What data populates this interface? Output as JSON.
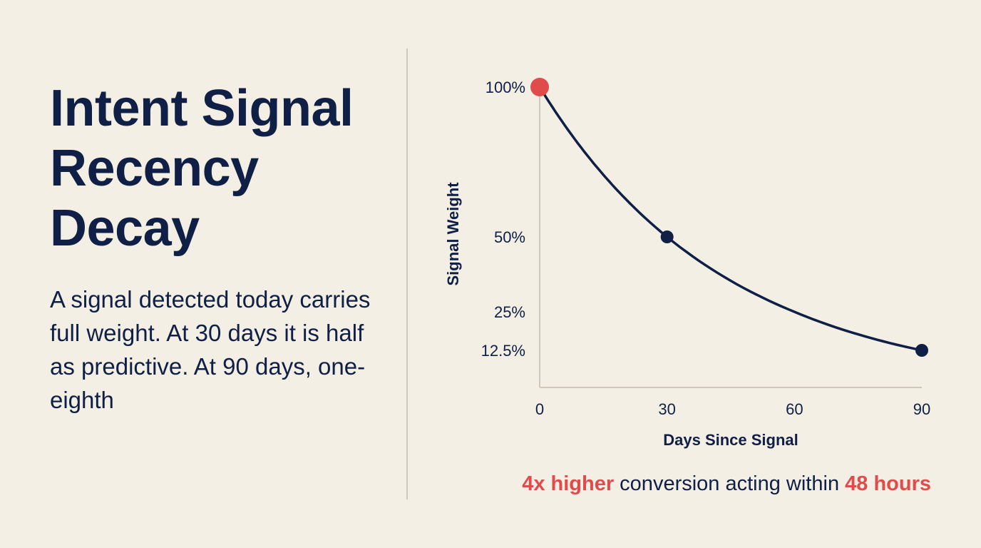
{
  "headline": {
    "line1": "Intent Signal",
    "line2": "Recency",
    "line3": "Decay"
  },
  "description": "A signal detected today carries full weight. At 30 days it is half as predictive. At 90 days, one-eighth",
  "callout": {
    "highlight1": "4x higher",
    "middle": " conversion acting within ",
    "highlight2": "48 hours"
  },
  "colors": {
    "background": "#f4efe4",
    "text": "#0f1f45",
    "accent": "#e04b4b",
    "divider": "#cfc7b8"
  },
  "chart_data": {
    "type": "line",
    "xlabel": "Days Since Signal",
    "ylabel": "Signal Weight",
    "x_ticks": [
      {
        "value": 0,
        "label": "0"
      },
      {
        "value": 30,
        "label": "30"
      },
      {
        "value": 60,
        "label": "60"
      },
      {
        "value": 90,
        "label": "90"
      }
    ],
    "y_ticks": [
      {
        "value": 100,
        "label": "100%"
      },
      {
        "value": 50,
        "label": "50%"
      },
      {
        "value": 25,
        "label": "25%"
      },
      {
        "value": 12.5,
        "label": "12.5%"
      }
    ],
    "xlim": [
      0,
      90
    ],
    "ylim": [
      0,
      100
    ],
    "series": [
      {
        "x": [
          0,
          30,
          90
        ],
        "y": [
          100,
          50,
          12.5
        ]
      }
    ],
    "markers": [
      {
        "x": 0,
        "y": 100,
        "color": "#e04b4b"
      },
      {
        "x": 30,
        "y": 50,
        "color": "#0f1f45"
      },
      {
        "x": 90,
        "y": 12.5,
        "color": "#0f1f45"
      }
    ],
    "grid": false
  }
}
